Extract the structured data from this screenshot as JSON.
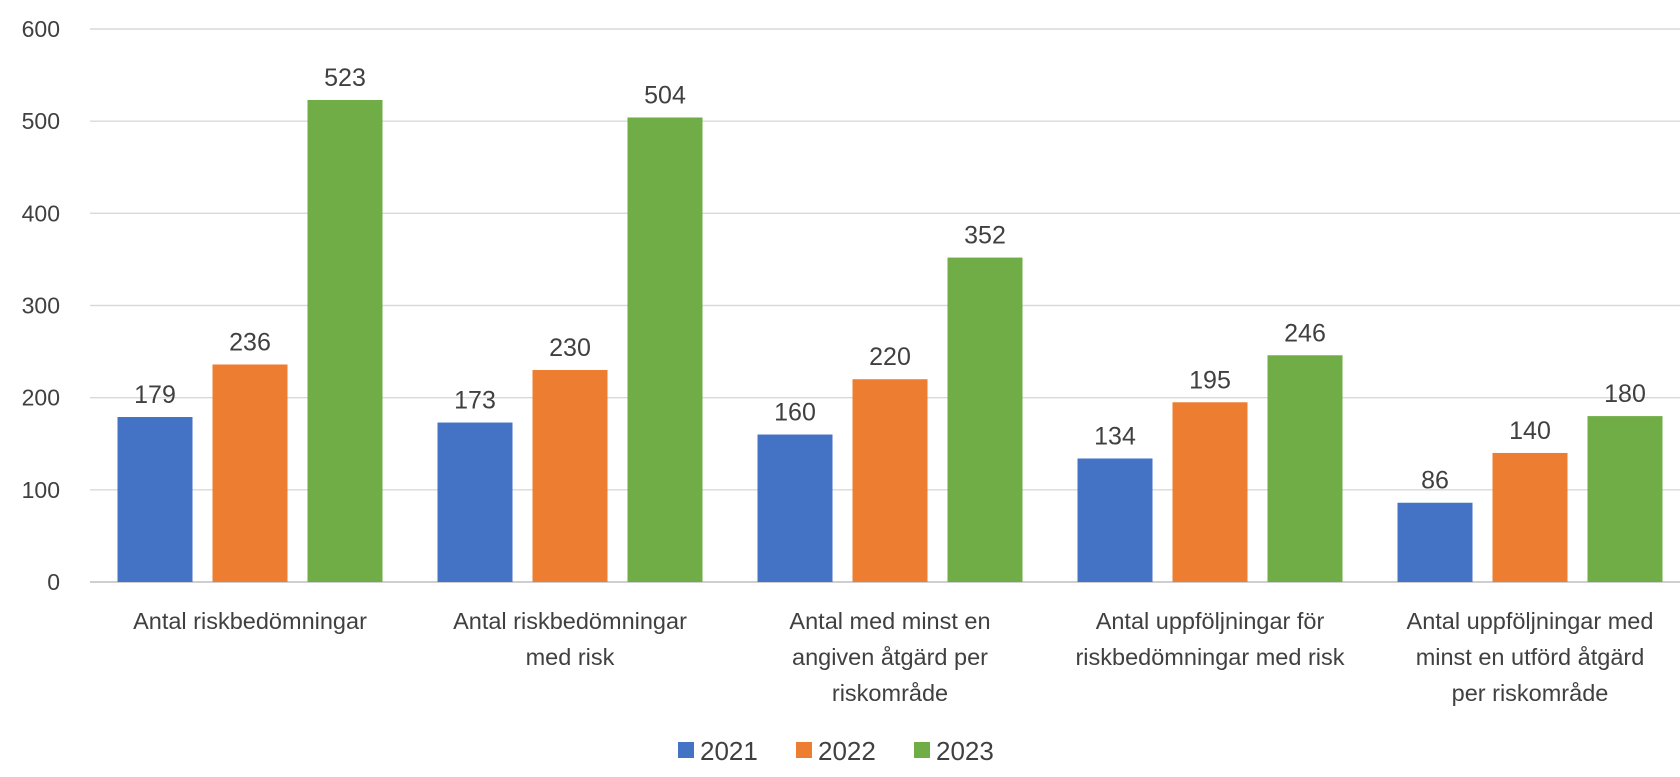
{
  "chart_data": {
    "type": "bar",
    "title": "",
    "xlabel": "",
    "ylabel": "",
    "ylim": [
      0,
      600
    ],
    "yticks": [
      0,
      100,
      200,
      300,
      400,
      500,
      600
    ],
    "grid": true,
    "legend_position": "bottom",
    "categories": [
      [
        "Antal riskbedömningar"
      ],
      [
        "Antal riskbedömningar",
        "med risk"
      ],
      [
        "Antal med minst en",
        "angiven åtgärd per",
        "riskområde"
      ],
      [
        "Antal uppföljningar för",
        "riskbedömningar med risk"
      ],
      [
        "Antal uppföljningar med",
        "minst en utförd åtgärd",
        "per riskområde"
      ]
    ],
    "series": [
      {
        "name": "2021",
        "color": "#4472c4",
        "values": [
          179,
          173,
          160,
          134,
          86
        ]
      },
      {
        "name": "2022",
        "color": "#ed7d31",
        "values": [
          236,
          230,
          220,
          195,
          140
        ]
      },
      {
        "name": "2023",
        "color": "#70ad47",
        "values": [
          523,
          504,
          352,
          246,
          180
        ]
      }
    ]
  }
}
